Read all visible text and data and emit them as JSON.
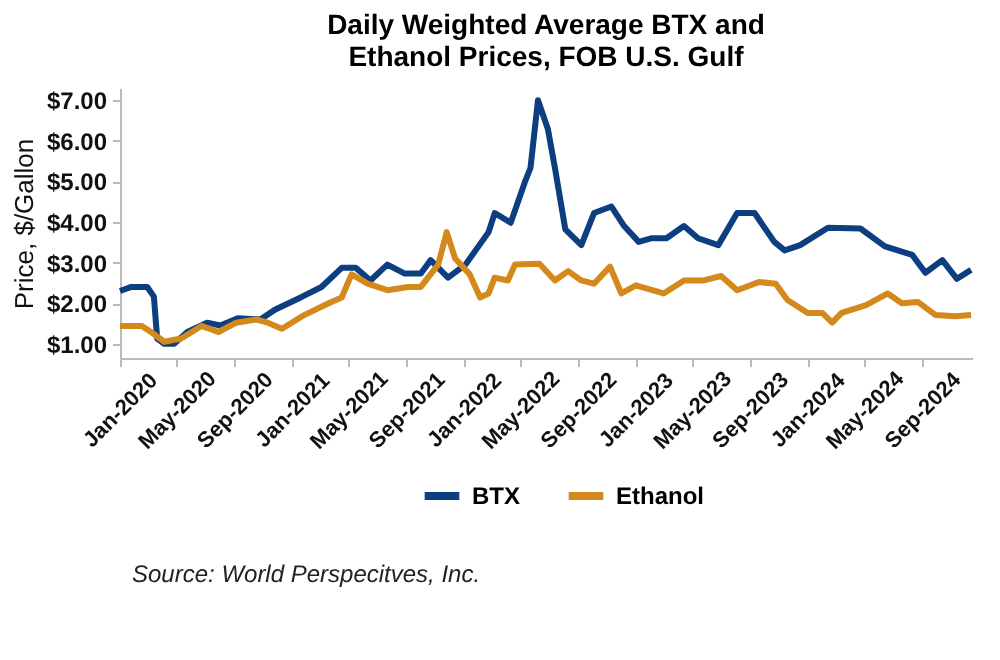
{
  "chart_data": {
    "type": "line",
    "title": "Daily Weighted Average BTX and\nEthanol Prices, FOB U.S. Gulf",
    "ylabel": "Price, $/Gallon",
    "annotations": [
      "Source: World Perspecitves, Inc."
    ],
    "xlim": [
      "2020-01-01",
      "2024-12-15"
    ],
    "xticks": [
      {
        "value": "2020-01-01",
        "label": "Jan-2020"
      },
      {
        "value": "2020-05-01",
        "label": "May-2020"
      },
      {
        "value": "2020-09-01",
        "label": "Sep-2020"
      },
      {
        "value": "2021-01-01",
        "label": "Jan-2021"
      },
      {
        "value": "2021-05-01",
        "label": "May-2021"
      },
      {
        "value": "2021-09-01",
        "label": "Sep-2021"
      },
      {
        "value": "2022-01-01",
        "label": "Jan-2022"
      },
      {
        "value": "2022-05-01",
        "label": "May-2022"
      },
      {
        "value": "2022-09-01",
        "label": "Sep-2022"
      },
      {
        "value": "2023-01-01",
        "label": "Jan-2023"
      },
      {
        "value": "2023-05-01",
        "label": "May-2023"
      },
      {
        "value": "2023-09-01",
        "label": "Sep-2023"
      },
      {
        "value": "2024-01-01",
        "label": "Jan-2024"
      },
      {
        "value": "2024-05-01",
        "label": "May-2024"
      },
      {
        "value": "2024-09-01",
        "label": "Sep-2024"
      }
    ],
    "ylim": [
      0.65,
      7.3
    ],
    "yticks": [
      {
        "value": 1,
        "label": "$1.00"
      },
      {
        "value": 2,
        "label": "$2.00"
      },
      {
        "value": 3,
        "label": "$3.00"
      },
      {
        "value": 4,
        "label": "$4.00"
      },
      {
        "value": 5,
        "label": "$5.00"
      },
      {
        "value": 6,
        "label": "$6.00"
      },
      {
        "value": 7,
        "label": "$7.00"
      }
    ],
    "grid": false,
    "legend": "bottom",
    "series": [
      {
        "name": "BTX",
        "color": "#0d3f80",
        "x": [
          "2020-01-01",
          "2020-01-25",
          "2020-02-28",
          "2020-03-13",
          "2020-03-20",
          "2020-04-04",
          "2020-04-25",
          "2020-05-23",
          "2020-07-04",
          "2020-08-01",
          "2020-09-07",
          "2020-10-25",
          "2020-11-25",
          "2021-01-22",
          "2021-03-04",
          "2021-04-16",
          "2021-05-16",
          "2021-06-16",
          "2021-07-22",
          "2021-08-28",
          "2021-10-01",
          "2021-10-22",
          "2021-11-28",
          "2022-01-04",
          "2022-02-22",
          "2022-03-07",
          "2022-04-10",
          "2022-05-10",
          "2022-05-22",
          "2022-06-07",
          "2022-06-28",
          "2022-07-13",
          "2022-08-04",
          "2022-09-07",
          "2022-10-04",
          "2022-11-10",
          "2022-12-07",
          "2023-01-07",
          "2023-02-04",
          "2023-03-07",
          "2023-04-13",
          "2023-05-13",
          "2023-06-25",
          "2023-08-04",
          "2023-09-10",
          "2023-10-22",
          "2023-11-13",
          "2023-12-16",
          "2024-02-13",
          "2024-04-22",
          "2024-06-13",
          "2024-08-10",
          "2024-09-07",
          "2024-10-13",
          "2024-11-13",
          "2024-12-13"
        ],
        "values": [
          2.3,
          2.4,
          2.4,
          2.16,
          1.13,
          1.0,
          1.0,
          1.29,
          1.52,
          1.45,
          1.63,
          1.6,
          1.84,
          2.16,
          2.4,
          2.87,
          2.87,
          2.56,
          2.95,
          2.73,
          2.73,
          3.06,
          2.63,
          2.95,
          3.75,
          4.22,
          3.98,
          4.98,
          5.33,
          7.0,
          6.29,
          5.33,
          3.82,
          3.43,
          4.22,
          4.38,
          3.9,
          3.51,
          3.6,
          3.6,
          3.9,
          3.6,
          3.43,
          4.22,
          4.22,
          3.51,
          3.3,
          3.43,
          3.86,
          3.84,
          3.4,
          3.19,
          2.75,
          3.06,
          2.6,
          2.82
        ]
      },
      {
        "name": "Ethanol",
        "color": "#d4891c",
        "x": [
          "2020-01-01",
          "2020-02-16",
          "2020-03-07",
          "2020-04-04",
          "2020-05-10",
          "2020-06-22",
          "2020-07-28",
          "2020-09-04",
          "2020-10-16",
          "2020-11-10",
          "2020-12-10",
          "2021-01-22",
          "2021-03-19",
          "2021-04-16",
          "2021-05-07",
          "2021-06-10",
          "2021-07-22",
          "2021-09-04",
          "2021-10-01",
          "2021-11-07",
          "2021-11-25",
          "2021-12-13",
          "2022-01-13",
          "2022-02-04",
          "2022-02-22",
          "2022-03-07",
          "2022-04-04",
          "2022-04-19",
          "2022-06-10",
          "2022-07-13",
          "2022-08-10",
          "2022-09-07",
          "2022-10-04",
          "2022-11-07",
          "2022-12-01",
          "2023-01-01",
          "2023-03-01",
          "2023-04-13",
          "2023-05-25",
          "2023-07-01",
          "2023-08-04",
          "2023-09-19",
          "2023-10-25",
          "2023-11-19",
          "2024-01-01",
          "2024-02-01",
          "2024-02-22",
          "2024-03-13",
          "2024-05-04",
          "2024-06-19",
          "2024-07-19",
          "2024-08-22",
          "2024-09-28",
          "2024-11-10",
          "2024-12-13"
        ],
        "values": [
          1.44,
          1.44,
          1.29,
          1.05,
          1.13,
          1.44,
          1.29,
          1.52,
          1.6,
          1.52,
          1.37,
          1.68,
          2.0,
          2.14,
          2.71,
          2.48,
          2.32,
          2.4,
          2.4,
          2.95,
          3.75,
          3.1,
          2.71,
          2.14,
          2.24,
          2.63,
          2.56,
          2.95,
          2.97,
          2.56,
          2.79,
          2.56,
          2.48,
          2.9,
          2.24,
          2.44,
          2.24,
          2.56,
          2.56,
          2.67,
          2.32,
          2.52,
          2.48,
          2.08,
          1.76,
          1.76,
          1.52,
          1.76,
          1.95,
          2.24,
          2.0,
          2.03,
          1.71,
          1.68,
          1.71
        ]
      }
    ]
  }
}
